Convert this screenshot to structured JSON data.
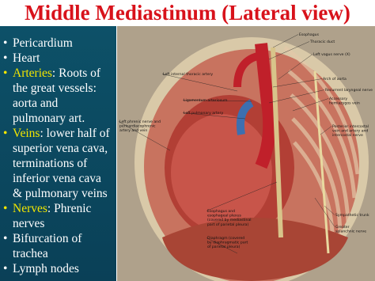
{
  "title": "Middle Mediastinum (Lateral view)",
  "bullets": [
    {
      "text": "Pericardium"
    },
    {
      "text": "Heart"
    },
    {
      "keyword": "Arteries",
      "text": ": Roots of the great vessels: aorta and pulmonary art."
    },
    {
      "keyword": "Veins",
      "text": ": lower half of superior vena cava, terminations of inferior vena cava & pulmonary veins"
    },
    {
      "keyword": "Nerves",
      "text": ": Phrenic nerves"
    },
    {
      "text": "Bifurcation of trachea"
    },
    {
      "text": "Lymph nodes"
    }
  ],
  "image_labels": [
    {
      "lines": [
        "Esophagus"
      ]
    },
    {
      "lines": [
        "Thoracic duct"
      ]
    },
    {
      "lines": [
        "Left vagus nerve (X)"
      ]
    },
    {
      "lines": [
        "Left internal thoracic artery"
      ]
    },
    {
      "lines": [
        "Arch of aorta"
      ]
    },
    {
      "lines": [
        "Recurrent laryngeal nerve"
      ]
    },
    {
      "lines": [
        "Ligamentum arteriosum"
      ]
    },
    {
      "lines": [
        "Accessory",
        "hemiazygos vein"
      ]
    },
    {
      "lines": [
        "Left pulmonary artery"
      ]
    },
    {
      "lines": [
        "Left phrenic nerve and",
        "pericardiacophrenic",
        "artery and vein"
      ]
    },
    {
      "lines": [
        "Posterior intercostal",
        "vein and artery and",
        "intercostal nerve"
      ]
    },
    {
      "lines": [
        "Esophagus and",
        "esophageal plexus",
        "(covered by mediastinal",
        "part of parietal pleura)"
      ]
    },
    {
      "lines": [
        "Sympathetic trunk"
      ]
    },
    {
      "lines": [
        "Greater",
        "splanchnic nerve"
      ]
    },
    {
      "lines": [
        "Diaphragm (covered",
        "by diaphragmatic part",
        "of parietal pleura)"
      ]
    }
  ]
}
